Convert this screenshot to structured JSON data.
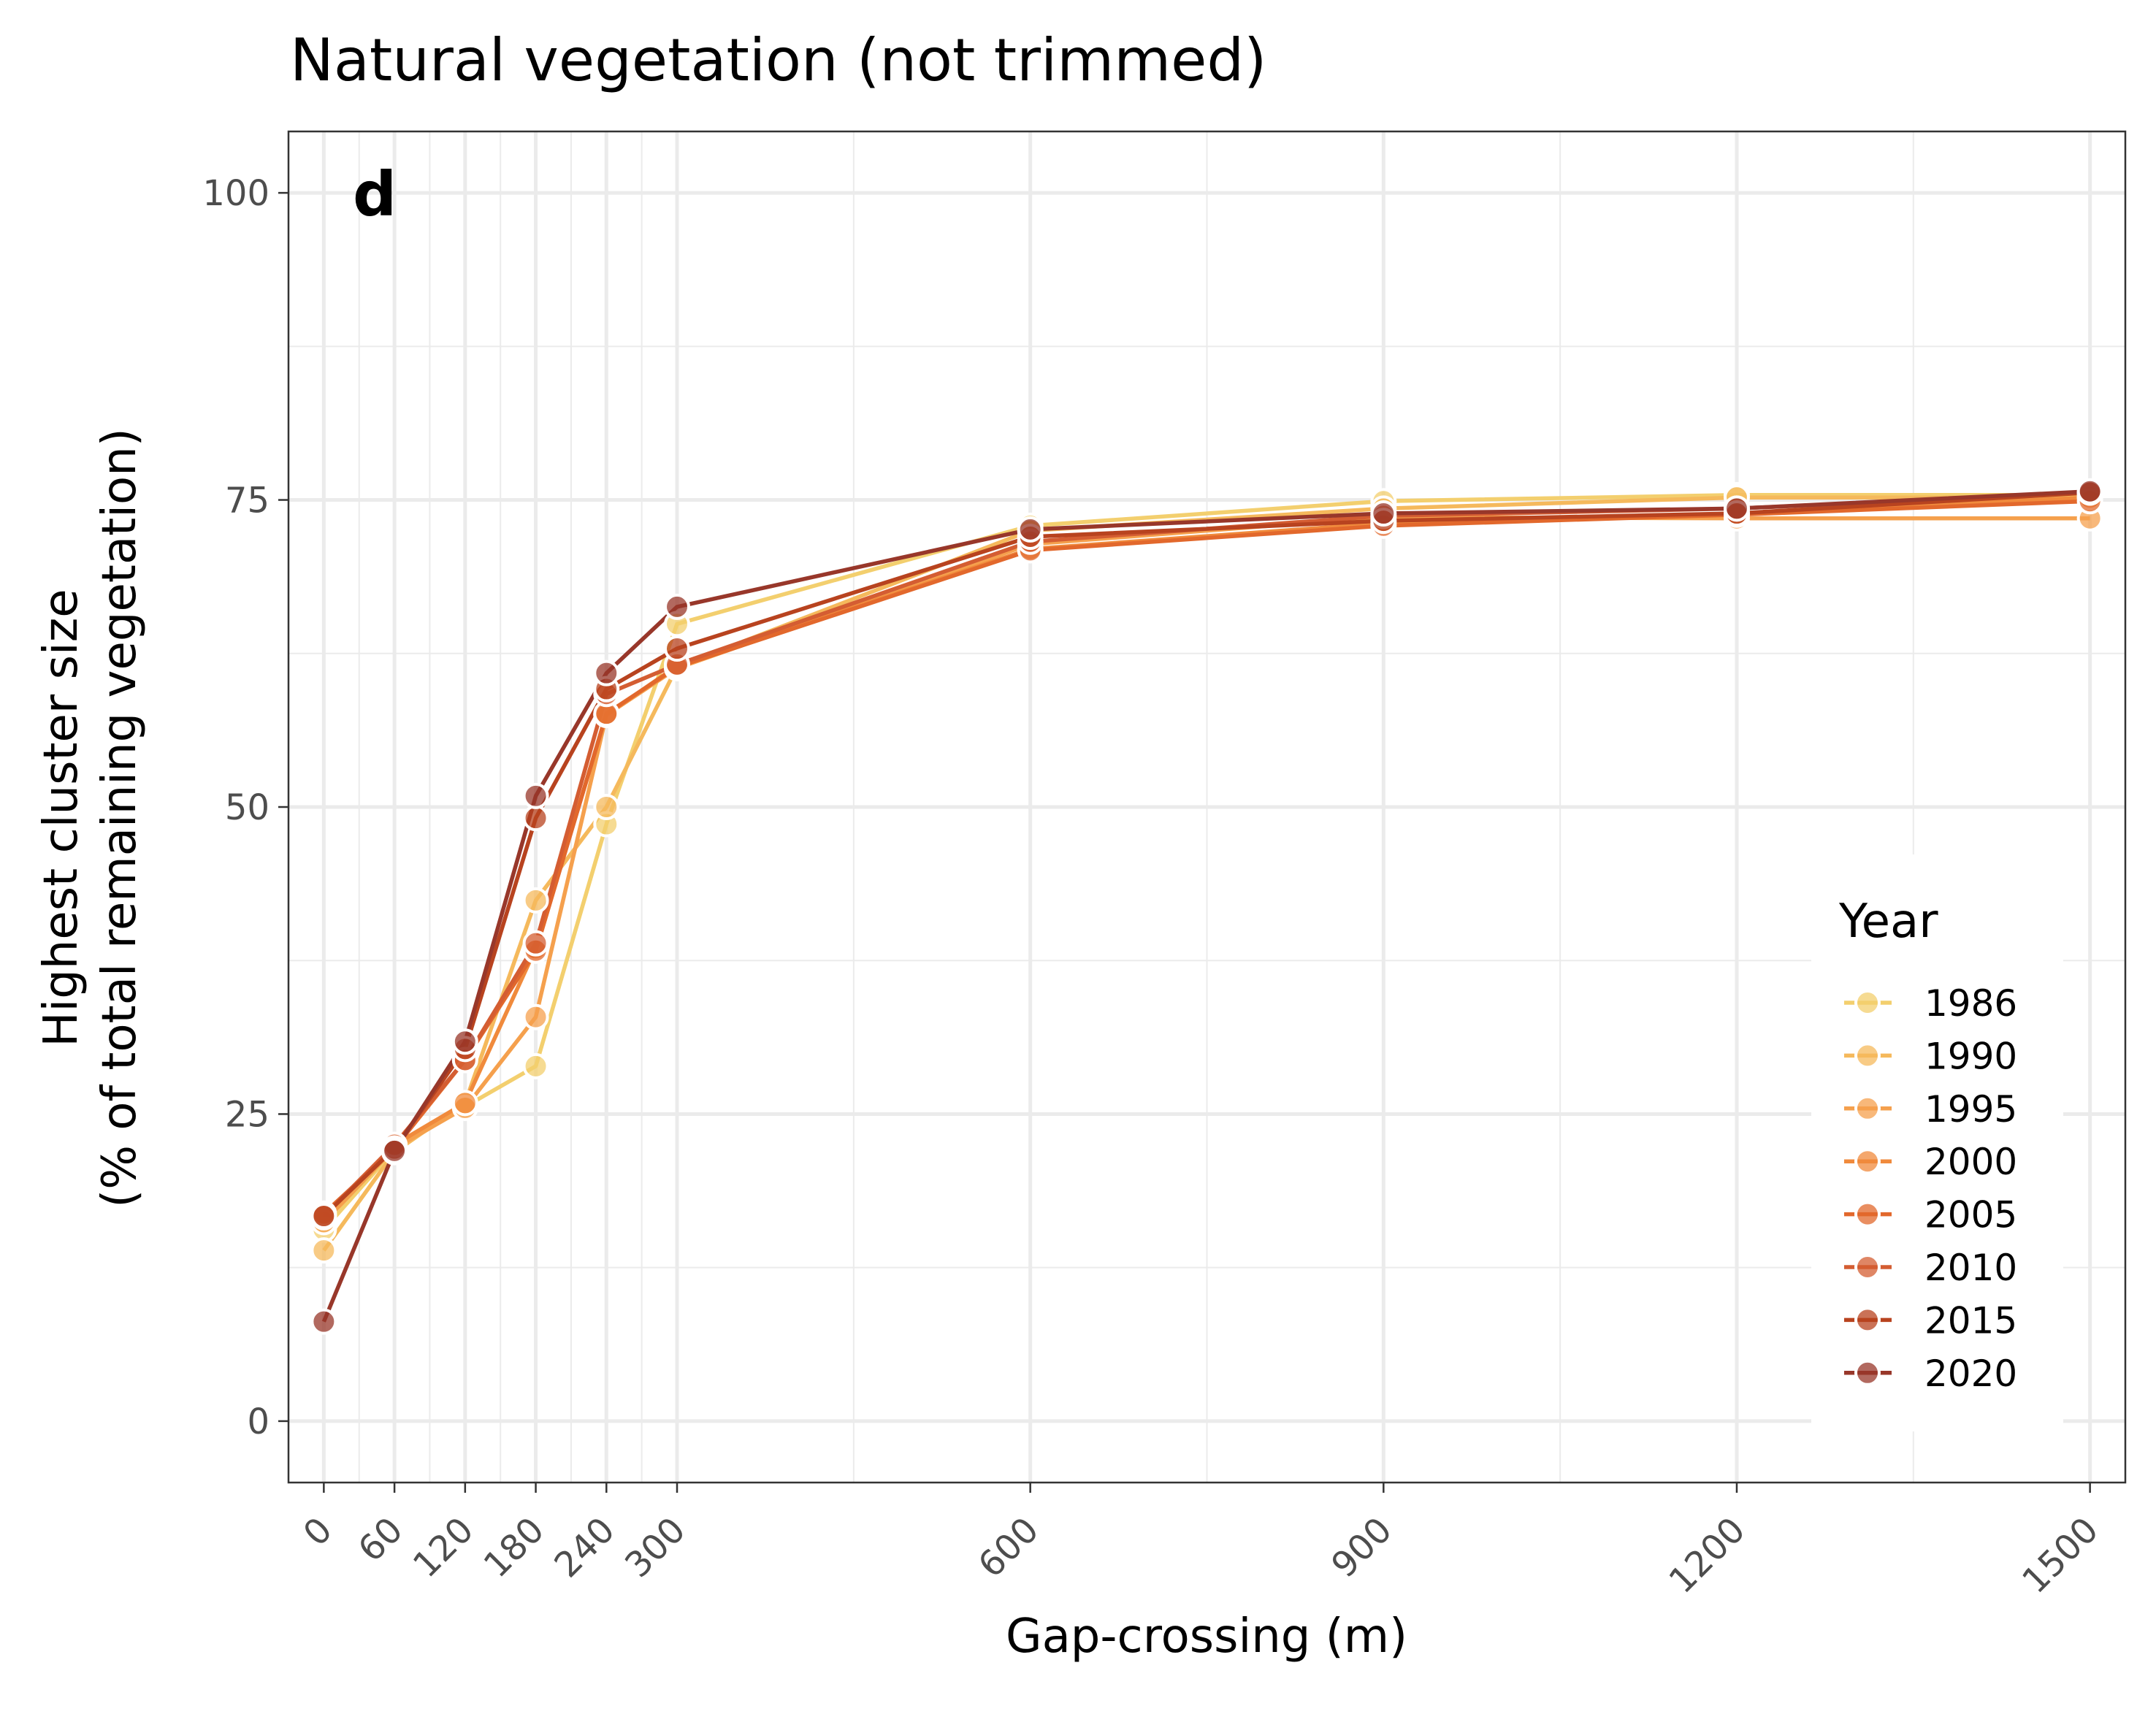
{
  "chart_data": {
    "type": "line",
    "title": "Natural vegetation (not trimmed)",
    "panel_tag": "d",
    "xlabel": "Gap-crossing (m)",
    "ylabel_line1": "Highest cluster size",
    "ylabel_line2": "(% of total remaining vegetation)",
    "xlim": [
      -30,
      1530
    ],
    "ylim": [
      -5,
      105
    ],
    "x_ticks": [
      0,
      60,
      120,
      180,
      240,
      300,
      600,
      900,
      1200,
      1500
    ],
    "x_tick_labels": [
      "0",
      "60",
      "120",
      "180",
      "240",
      "300",
      "600",
      "900",
      "1200",
      "1500"
    ],
    "x_minor_gridlines": [
      30,
      90,
      150,
      210,
      270,
      450,
      750,
      1050,
      1350
    ],
    "y_ticks": [
      0,
      25,
      50,
      75,
      100
    ],
    "y_tick_labels": [
      "0",
      "25",
      "50",
      "75",
      "100"
    ],
    "y_minor_gridlines": [
      12.5,
      37.5,
      62.5,
      87.5
    ],
    "grid": true,
    "legend": {
      "title": "Year",
      "position": "right"
    },
    "x": [
      0,
      60,
      120,
      180,
      240,
      300,
      600,
      900,
      1200,
      1500
    ],
    "series": [
      {
        "name": "1986",
        "color": "#f3cf6e",
        "values": [
          15.6,
          22.1,
          25.6,
          28.9,
          48.6,
          64.9,
          72.9,
          74.9,
          75.4,
          75.4
        ]
      },
      {
        "name": "1990",
        "color": "#f5b95c",
        "values": [
          13.9,
          21.9,
          25.9,
          42.4,
          50.0,
          61.4,
          72.5,
          74.3,
          75.2,
          75.2
        ]
      },
      {
        "name": "1995",
        "color": "#f5a04d",
        "values": [
          16.2,
          22.2,
          25.5,
          32.9,
          57.5,
          61.3,
          71.4,
          73.6,
          73.5,
          73.5
        ]
      },
      {
        "name": "2000",
        "color": "#f08a3c",
        "values": [
          16.6,
          22.5,
          25.9,
          38.5,
          57.5,
          61.5,
          71.0,
          73.1,
          73.9,
          75.2
        ]
      },
      {
        "name": "2005",
        "color": "#e2682c",
        "values": [
          16.9,
          22.2,
          29.4,
          38.3,
          57.6,
          61.4,
          70.9,
          72.9,
          73.8,
          74.9
        ]
      },
      {
        "name": "2010",
        "color": "#d45d32",
        "values": [
          16.7,
          22.5,
          29.4,
          38.9,
          59.2,
          61.6,
          71.6,
          73.7,
          74.3,
          75.6
        ]
      },
      {
        "name": "2015",
        "color": "#b8431f",
        "values": [
          16.7,
          22.2,
          30.3,
          49.1,
          59.6,
          62.9,
          72.0,
          73.3,
          73.9,
          75.6
        ]
      },
      {
        "name": "2020",
        "color": "#98372a",
        "values": [
          8.1,
          22.0,
          30.9,
          50.9,
          60.9,
          66.3,
          72.6,
          73.9,
          74.3,
          75.7
        ]
      }
    ]
  }
}
